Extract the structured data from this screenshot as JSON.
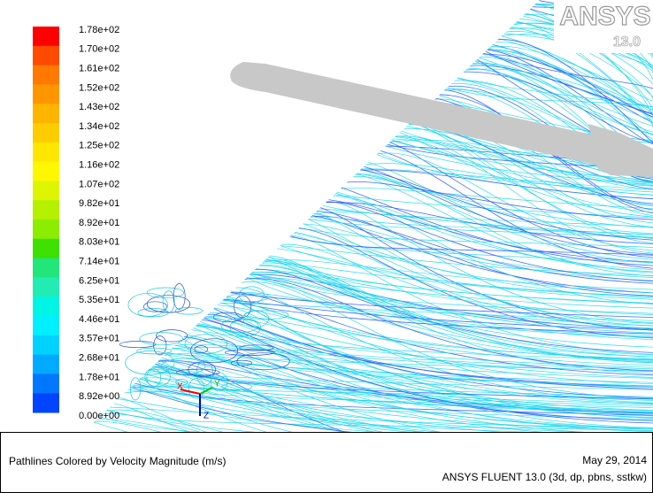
{
  "colorbar": {
    "labels": [
      "1.78e+02",
      "1.70e+02",
      "1.61e+02",
      "1.52e+02",
      "1.43e+02",
      "1.34e+02",
      "1.25e+02",
      "1.16e+02",
      "1.07e+02",
      "9.82e+01",
      "8.92e+01",
      "8.03e+01",
      "7.14e+01",
      "6.25e+01",
      "5.35e+01",
      "4.46e+01",
      "3.57e+01",
      "2.68e+01",
      "1.78e+01",
      "8.92e+00",
      "0.00e+00"
    ],
    "colors": [
      "#ff0000",
      "#ff4a00",
      "#ff7800",
      "#ff9600",
      "#ffb400",
      "#ffcc00",
      "#ffe600",
      "#fff700",
      "#ddf500",
      "#b4f000",
      "#8ced00",
      "#3ee000",
      "#22e67a",
      "#22ecb4",
      "#00f5e6",
      "#00f0ff",
      "#00d2ff",
      "#00aaff",
      "#0077ff",
      "#0044ff"
    ]
  },
  "logo": {
    "text": "ANSYS",
    "version": "13.0"
  },
  "triad": {
    "x": "X",
    "y": "Y",
    "z": "Z"
  },
  "footer": {
    "title": "Pathlines Colored by Velocity Magnitude (m/s)",
    "date": "May 29, 2014",
    "software": "ANSYS FLUENT 13.0 (3d, dp, pbns, sstkw)"
  }
}
